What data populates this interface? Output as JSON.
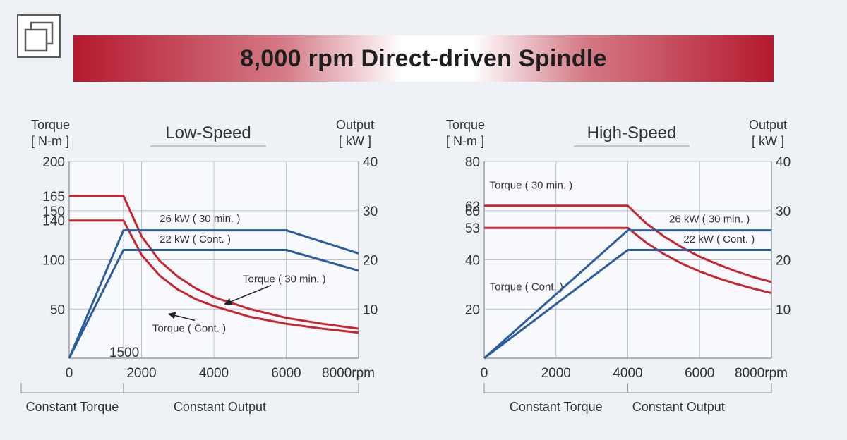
{
  "title": "8,000 rpm Direct-driven Spindle",
  "icons": {
    "expand": "expand-icon"
  },
  "colors": {
    "torque": "#c8252f",
    "output": "#2b5d9e",
    "banner": "#b5192e"
  },
  "chart_data": [
    {
      "type": "line",
      "title": "Low-Speed",
      "xlabel": "rpm",
      "ylabel": [
        "Torque",
        "[ N-m ]"
      ],
      "y2label": [
        "Output",
        "[ kW ]"
      ],
      "xlim": [
        0,
        8000
      ],
      "ylim": [
        0,
        200
      ],
      "y2lim": [
        0,
        40
      ],
      "xticks": [
        0,
        2000,
        4000,
        6000,
        8000
      ],
      "xtick_labels": [
        "0",
        "2000",
        "4000",
        "6000",
        "8000rpm"
      ],
      "yticks": [
        50,
        100,
        140,
        150,
        165,
        200
      ],
      "y2ticks": [
        10,
        20,
        30,
        40
      ],
      "extra_label": "1500",
      "regions": [
        "Constant Torque",
        "Constant Output"
      ],
      "grid": true,
      "series": [
        {
          "name": "Torque ( 30 min. )",
          "axis": "left",
          "color": "#c8252f",
          "label_pos": [
            4800,
            77
          ],
          "arrow_to": [
            4300,
            55
          ],
          "points": [
            [
              0,
              165
            ],
            [
              1500,
              165
            ],
            [
              2000,
              124
            ],
            [
              2500,
              99
            ],
            [
              3000,
              83
            ],
            [
              3500,
              71
            ],
            [
              4000,
              62
            ],
            [
              5000,
              50
            ],
            [
              6000,
              41
            ],
            [
              7000,
              35
            ],
            [
              8000,
              30
            ]
          ]
        },
        {
          "name": "Torque ( Cont. )",
          "axis": "left",
          "color": "#c8252f",
          "label_pos": [
            2300,
            27
          ],
          "arrow_to": [
            2750,
            45
          ],
          "points": [
            [
              0,
              140
            ],
            [
              1500,
              140
            ],
            [
              2000,
              105
            ],
            [
              2500,
              84
            ],
            [
              3000,
              70
            ],
            [
              3500,
              60
            ],
            [
              4000,
              53
            ],
            [
              5000,
              42
            ],
            [
              6000,
              35
            ],
            [
              7000,
              30
            ],
            [
              8000,
              26
            ]
          ]
        },
        {
          "name": "26 kW ( 30 min. )",
          "axis": "right",
          "color": "#2b5d9e",
          "label_pos": [
            2500,
            27.7
          ],
          "points": [
            [
              0,
              0
            ],
            [
              1500,
              26
            ],
            [
              6000,
              26
            ],
            [
              8000,
              21.3
            ]
          ]
        },
        {
          "name": "22 kW ( Cont. )",
          "axis": "right",
          "color": "#2b5d9e",
          "label_pos": [
            2500,
            23.5
          ],
          "points": [
            [
              0,
              0
            ],
            [
              1500,
              22
            ],
            [
              6000,
              22
            ],
            [
              8000,
              17.8
            ]
          ]
        }
      ]
    },
    {
      "type": "line",
      "title": "High-Speed",
      "xlabel": "rpm",
      "ylabel": [
        "Torque",
        "[ N-m ]"
      ],
      "y2label": [
        "Output",
        "[ kW ]"
      ],
      "xlim": [
        0,
        8000
      ],
      "ylim": [
        0,
        80
      ],
      "y2lim": [
        0,
        40
      ],
      "xticks": [
        0,
        2000,
        4000,
        6000,
        8000
      ],
      "xtick_labels": [
        "0",
        "2000",
        "4000",
        "6000",
        "8000rpm"
      ],
      "yticks": [
        20,
        40,
        53,
        60,
        62,
        80
      ],
      "y2ticks": [
        10,
        20,
        30,
        40
      ],
      "regions": [
        "Constant Torque",
        "Constant Output"
      ],
      "grid": true,
      "series": [
        {
          "name": "Torque ( 30 min. )",
          "axis": "left",
          "color": "#c8252f",
          "label_pos": [
            150,
            69
          ],
          "points": [
            [
              0,
              62
            ],
            [
              4000,
              62
            ],
            [
              4500,
              55
            ],
            [
              5000,
              49.6
            ],
            [
              5500,
              45.1
            ],
            [
              6000,
              41.3
            ],
            [
              6500,
              38.2
            ],
            [
              7000,
              35.4
            ],
            [
              7500,
              33
            ],
            [
              8000,
              31
            ]
          ]
        },
        {
          "name": "Torque ( Cont. )",
          "axis": "left",
          "color": "#c8252f",
          "label_pos": [
            150,
            27.6
          ],
          "points": [
            [
              0,
              53
            ],
            [
              4000,
              53
            ],
            [
              4500,
              47.1
            ],
            [
              5000,
              42.4
            ],
            [
              5500,
              38.5
            ],
            [
              6000,
              35.3
            ],
            [
              6500,
              32.6
            ],
            [
              7000,
              30.3
            ],
            [
              7500,
              28.3
            ],
            [
              8000,
              26.5
            ]
          ]
        },
        {
          "name": "26 kW ( 30 min. )",
          "axis": "right",
          "color": "#2b5d9e",
          "label_pos": [
            5150,
            27.6
          ],
          "points": [
            [
              0,
              0
            ],
            [
              4000,
              26
            ],
            [
              8000,
              26
            ]
          ]
        },
        {
          "name": "22 kW ( Cont. )",
          "axis": "right",
          "color": "#2b5d9e",
          "label_pos": [
            5550,
            23.5
          ],
          "points": [
            [
              0,
              0
            ],
            [
              4000,
              22
            ],
            [
              8000,
              22
            ]
          ]
        }
      ]
    }
  ]
}
